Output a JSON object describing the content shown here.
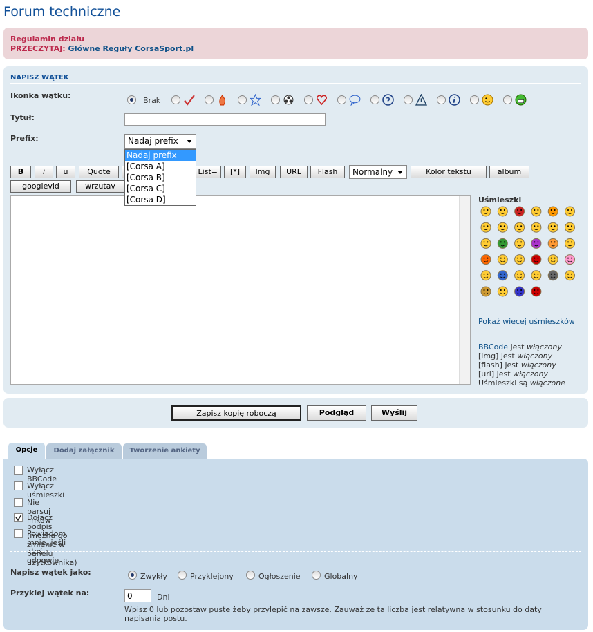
{
  "header": {
    "title": "Forum techniczne"
  },
  "rules": {
    "title": "Regulamin działu",
    "label": "PRZECZYTAJ:",
    "link": "Główne Reguły CorsaSport.pl"
  },
  "post_form": {
    "heading": "NAPISZ WĄTEK",
    "icon_label": "Ikonka wątku:",
    "icon_none": "Brak",
    "subject_label": "Tytuł:",
    "prefix_label": "Prefix:",
    "prefix_selected": "Nadaj prefix",
    "prefix_options": [
      "Nadaj prefix",
      "[Corsa A]",
      "[Corsa B]",
      "[Corsa C]",
      "[Corsa D]"
    ],
    "toolbar": [
      "B",
      "i",
      "u",
      "Quote",
      "List=",
      "[*]",
      "Img",
      "URL",
      "Flash"
    ],
    "font_size": "Normalny",
    "color_button": "Kolor tekstu",
    "extra_buttons": [
      "album",
      "googlevid",
      "wrzutav"
    ],
    "smilies_heading": "Uśmieszki",
    "smilies_more": "Pokaż więcej uśmieszków",
    "status": [
      {
        "label": "BBCode",
        "text": "jest",
        "state": "włączony"
      },
      {
        "label": "[img]",
        "text": "jest",
        "state": "włączony"
      },
      {
        "label": "[flash]",
        "text": "jest",
        "state": "włączony"
      },
      {
        "label": "[url]",
        "text": "jest",
        "state": "włączony"
      },
      {
        "label": "Uśmieszki",
        "text": "są",
        "state": "włączone"
      }
    ],
    "actions": [
      "Zapisz kopię roboczą",
      "Podgląd",
      "Wyślij"
    ]
  },
  "options": {
    "tabs": [
      "Opcje",
      "Dodaj załącznik",
      "Tworzenie ankiety"
    ],
    "checkboxes": [
      {
        "label": "Wyłącz BBCode",
        "checked": false
      },
      {
        "label": "Wyłącz uśmieszki",
        "checked": false
      },
      {
        "label": "Nie parsuj linków",
        "checked": false
      },
      {
        "label": "Dołącz podpis (można go zmienić w panelu użytkownika)",
        "checked": true
      },
      {
        "label": "Powiadom mnie, jeśli ktoś odpowie",
        "checked": false
      }
    ],
    "post_as_label": "Napisz wątek jako:",
    "post_as": [
      "Zwykły",
      "Przyklejony",
      "Ogłoszenie",
      "Globalny"
    ],
    "post_as_selected": 0,
    "sticky_label": "Przyklej wątek na:",
    "sticky_days": 0,
    "days_unit": "Dni",
    "sticky_help": "Wpisz 0 lub pozostaw puste żeby przylepić na zawsze. Zauważ że ta liczba jest relatywna w stosunku do daty napisania postu."
  }
}
